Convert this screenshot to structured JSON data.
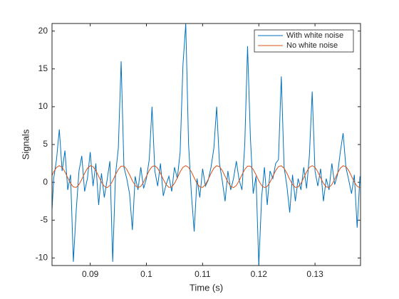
{
  "chart_data": {
    "type": "line",
    "xlabel": "Time (s)",
    "ylabel": "Signals",
    "x": [
      0.083,
      0.0835,
      0.084,
      0.0845,
      0.085,
      0.0855,
      0.086,
      0.0865,
      0.087,
      0.0875,
      0.088,
      0.0885,
      0.089,
      0.0895,
      0.09,
      0.0905,
      0.091,
      0.0915,
      0.092,
      0.0925,
      0.093,
      0.0935,
      0.094,
      0.0945,
      0.095,
      0.0955,
      0.096,
      0.0965,
      0.097,
      0.0975,
      0.098,
      0.0985,
      0.099,
      0.0995,
      0.1,
      0.1005,
      0.101,
      0.1015,
      0.102,
      0.1025,
      0.103,
      0.1035,
      0.104,
      0.1045,
      0.105,
      0.1055,
      0.106,
      0.1065,
      0.107,
      0.1075,
      0.108,
      0.1085,
      0.109,
      0.1095,
      0.11,
      0.1105,
      0.111,
      0.1115,
      0.112,
      0.1125,
      0.113,
      0.1135,
      0.114,
      0.1145,
      0.115,
      0.1155,
      0.116,
      0.1165,
      0.117,
      0.1175,
      0.118,
      0.1185,
      0.119,
      0.1195,
      0.12,
      0.1205,
      0.121,
      0.1215,
      0.122,
      0.1225,
      0.123,
      0.1235,
      0.124,
      0.1245,
      0.125,
      0.1255,
      0.126,
      0.1265,
      0.127,
      0.1275,
      0.128,
      0.1285,
      0.129,
      0.1295,
      0.13,
      0.1305,
      0.131,
      0.1315,
      0.132,
      0.1325,
      0.133,
      0.1335,
      0.134,
      0.1345,
      0.135,
      0.1355,
      0.136,
      0.1365,
      0.137,
      0.1375,
      0.138
    ],
    "series": [
      {
        "name": "With white noise",
        "color": "#0072bd",
        "values": [
          -6.5,
          0.5,
          3.0,
          7.0,
          1.5,
          4.2,
          -1.0,
          1.0,
          -10.5,
          -3.8,
          1.5,
          3.5,
          -1.2,
          0.5,
          4.0,
          -0.5,
          2.5,
          -3.0,
          1.2,
          -2.0,
          0.3,
          2.8,
          -10.5,
          1.0,
          4.5,
          16.0,
          2.0,
          0.5,
          -1.5,
          -6.3,
          0.8,
          -1.0,
          2.0,
          -0.8,
          0.5,
          3.0,
          10.0,
          1.5,
          -0.5,
          2.5,
          -1.8,
          -0.3,
          0.8,
          -1.2,
          2.0,
          0.5,
          4.0,
          15.5,
          21.0,
          5.0,
          -1.5,
          -6.5,
          0.5,
          -2.0,
          1.8,
          -0.5,
          0.3,
          2.0,
          4.5,
          10.0,
          2.5,
          0.2,
          -2.5,
          1.5,
          -1.0,
          0.5,
          2.8,
          0.3,
          -1.0,
          5.0,
          18.0,
          6.0,
          -1.5,
          0.8,
          -11.0,
          -2.0,
          2.0,
          -3.0,
          1.5,
          0.5,
          2.5,
          3.0,
          14.0,
          2.0,
          -0.5,
          -4.0,
          1.0,
          -2.5,
          0.5,
          -1.0,
          2.0,
          -0.8,
          3.5,
          12.0,
          1.5,
          -0.5,
          1.8,
          -2.5,
          0.5,
          -1.0,
          2.5,
          -0.3,
          1.0,
          4.0,
          6.5,
          2.0,
          0.3,
          -1.5,
          1.0,
          -6.0,
          0.8
        ]
      },
      {
        "name": "No white noise",
        "color": "#d95319",
        "values": [
          0.6,
          1.39,
          1.98,
          2.2,
          1.98,
          1.39,
          0.6,
          -0.14,
          -0.61,
          -0.67,
          -0.29,
          0.4,
          1.2,
          1.86,
          2.19,
          2.08,
          1.56,
          0.8,
          0.03,
          -0.53,
          -0.7,
          -0.42,
          0.21,
          1,
          1.72,
          2.14,
          2.14,
          1.72,
          1,
          0.21,
          -0.42,
          -0.7,
          -0.53,
          0.03,
          0.8,
          1.56,
          2.08,
          2.19,
          1.86,
          1.2,
          0.4,
          -0.29,
          -0.67,
          -0.61,
          -0.14,
          0.6,
          1.39,
          1.98,
          2.2,
          1.98,
          1.39,
          0.6,
          -0.14,
          -0.61,
          -0.67,
          -0.29,
          0.4,
          1.2,
          1.86,
          2.19,
          2.08,
          1.56,
          0.8,
          0.03,
          -0.53,
          -0.7,
          -0.42,
          0.21,
          1,
          1.72,
          2.14,
          2.14,
          1.72,
          1,
          0.21,
          -0.42,
          -0.7,
          -0.53,
          0.03,
          0.8,
          1.56,
          2.08,
          2.19,
          1.86,
          1.2,
          0.4,
          -0.29,
          -0.67,
          -0.61,
          -0.14,
          0.6,
          1.39,
          1.98,
          2.2,
          1.98,
          1.39,
          0.6,
          -0.14,
          -0.61,
          -0.67,
          -0.29,
          0.4,
          1.2,
          1.86,
          2.19,
          2.08,
          1.56,
          0.8,
          0.03,
          -0.53,
          -0.7
        ]
      }
    ],
    "xlim": [
      0.0832,
      0.1381
    ],
    "ylim": [
      -11,
      21
    ],
    "xticks": [
      0.09,
      0.1,
      0.11,
      0.12,
      0.13
    ],
    "yticks": [
      -10,
      -5,
      0,
      5,
      10,
      15,
      20
    ],
    "legend": "upper right"
  }
}
